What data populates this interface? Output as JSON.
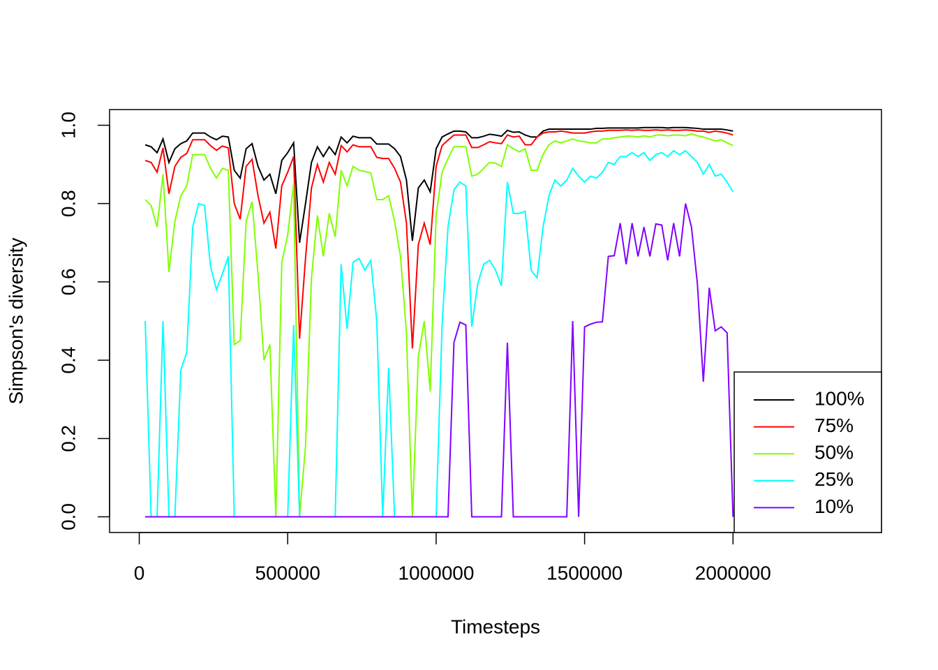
{
  "chart_data": {
    "type": "line",
    "x_label": "Timesteps",
    "y_label": "Simpson's diversity",
    "xlim": [
      -100000,
      2500000
    ],
    "ylim": [
      -0.04,
      1.04
    ],
    "xticks": [
      0,
      500000,
      1000000,
      1500000,
      2000000
    ],
    "yticks": [
      {
        "value": 0,
        "label": "0.0"
      },
      {
        "value": 0.2,
        "label": "0.2"
      },
      {
        "value": 0.4,
        "label": "0.4"
      },
      {
        "value": 0.6,
        "label": "0.6"
      },
      {
        "value": 0.8,
        "label": "0.8"
      },
      {
        "value": 1,
        "label": "1.0"
      }
    ],
    "legend_position": "bottom-right",
    "x": [
      20000,
      40000,
      60000,
      80000,
      100000,
      120000,
      140000,
      160000,
      180000,
      200000,
      220000,
      240000,
      260000,
      280000,
      300000,
      320000,
      340000,
      360000,
      380000,
      400000,
      420000,
      440000,
      460000,
      480000,
      500000,
      520000,
      540000,
      560000,
      580000,
      600000,
      620000,
      640000,
      660000,
      680000,
      700000,
      720000,
      740000,
      760000,
      780000,
      800000,
      820000,
      840000,
      860000,
      880000,
      900000,
      920000,
      940000,
      960000,
      980000,
      1000000,
      1020000,
      1040000,
      1060000,
      1080000,
      1100000,
      1120000,
      1140000,
      1160000,
      1180000,
      1200000,
      1220000,
      1240000,
      1260000,
      1280000,
      1300000,
      1320000,
      1340000,
      1360000,
      1380000,
      1400000,
      1420000,
      1440000,
      1460000,
      1480000,
      1500000,
      1520000,
      1540000,
      1560000,
      1580000,
      1600000,
      1620000,
      1640000,
      1660000,
      1680000,
      1700000,
      1720000,
      1740000,
      1760000,
      1780000,
      1800000,
      1820000,
      1840000,
      1860000,
      1880000,
      1900000,
      1920000,
      1940000,
      1960000,
      1980000,
      2000000
    ],
    "series": [
      {
        "name": "100%",
        "color": "#000000",
        "values": [
          0.95,
          0.945,
          0.93,
          0.965,
          0.905,
          0.94,
          0.953,
          0.96,
          0.98,
          0.98,
          0.98,
          0.97,
          0.963,
          0.972,
          0.97,
          0.885,
          0.865,
          0.94,
          0.953,
          0.895,
          0.86,
          0.875,
          0.825,
          0.91,
          0.93,
          0.955,
          0.7,
          0.8,
          0.905,
          0.945,
          0.92,
          0.945,
          0.925,
          0.97,
          0.955,
          0.972,
          0.968,
          0.968,
          0.968,
          0.952,
          0.952,
          0.952,
          0.94,
          0.92,
          0.86,
          0.705,
          0.84,
          0.86,
          0.83,
          0.94,
          0.97,
          0.978,
          0.985,
          0.985,
          0.983,
          0.968,
          0.968,
          0.972,
          0.977,
          0.975,
          0.972,
          0.987,
          0.982,
          0.983,
          0.975,
          0.97,
          0.97,
          0.985,
          0.99,
          0.99,
          0.99,
          0.99,
          0.99,
          0.99,
          0.99,
          0.99,
          0.992,
          0.992,
          0.993,
          0.993,
          0.993,
          0.993,
          0.993,
          0.993,
          0.994,
          0.994,
          0.994,
          0.994,
          0.993,
          0.994,
          0.994,
          0.994,
          0.993,
          0.992,
          0.99,
          0.99,
          0.99,
          0.99,
          0.988,
          0.985
        ]
      },
      {
        "name": "75%",
        "color": "#ff0000",
        "values": [
          0.91,
          0.905,
          0.88,
          0.942,
          0.825,
          0.895,
          0.918,
          0.928,
          0.963,
          0.963,
          0.963,
          0.948,
          0.936,
          0.947,
          0.942,
          0.8,
          0.76,
          0.895,
          0.913,
          0.82,
          0.75,
          0.778,
          0.685,
          0.845,
          0.88,
          0.92,
          0.455,
          0.66,
          0.84,
          0.9,
          0.855,
          0.905,
          0.875,
          0.948,
          0.932,
          0.95,
          0.945,
          0.945,
          0.945,
          0.918,
          0.915,
          0.915,
          0.89,
          0.855,
          0.75,
          0.43,
          0.695,
          0.75,
          0.695,
          0.895,
          0.948,
          0.962,
          0.975,
          0.975,
          0.975,
          0.943,
          0.943,
          0.95,
          0.958,
          0.955,
          0.953,
          0.975,
          0.97,
          0.972,
          0.95,
          0.95,
          0.97,
          0.98,
          0.983,
          0.983,
          0.985,
          0.983,
          0.98,
          0.98,
          0.98,
          0.983,
          0.985,
          0.985,
          0.987,
          0.987,
          0.987,
          0.988,
          0.987,
          0.988,
          0.987,
          0.987,
          0.988,
          0.987,
          0.988,
          0.987,
          0.987,
          0.988,
          0.987,
          0.985,
          0.985,
          0.982,
          0.985,
          0.983,
          0.98,
          0.975
        ]
      },
      {
        "name": "50%",
        "color": "#80ff00",
        "values": [
          0.81,
          0.795,
          0.74,
          0.875,
          0.625,
          0.755,
          0.82,
          0.845,
          0.925,
          0.925,
          0.925,
          0.89,
          0.865,
          0.89,
          0.885,
          0.44,
          0.45,
          0.755,
          0.805,
          0.62,
          0.4,
          0.44,
          0,
          0.65,
          0.72,
          0.85,
          0,
          0.18,
          0.61,
          0.77,
          0.665,
          0.775,
          0.715,
          0.885,
          0.845,
          0.895,
          0.885,
          0.882,
          0.878,
          0.81,
          0.81,
          0.82,
          0.755,
          0.665,
          0.47,
          0,
          0.41,
          0.5,
          0.32,
          0.77,
          0.88,
          0.915,
          0.945,
          0.945,
          0.945,
          0.87,
          0.875,
          0.89,
          0.905,
          0.903,
          0.895,
          0.95,
          0.94,
          0.932,
          0.94,
          0.885,
          0.885,
          0.925,
          0.95,
          0.96,
          0.955,
          0.96,
          0.965,
          0.96,
          0.958,
          0.955,
          0.955,
          0.965,
          0.965,
          0.968,
          0.97,
          0.972,
          0.972,
          0.97,
          0.973,
          0.97,
          0.975,
          0.975,
          0.973,
          0.975,
          0.975,
          0.973,
          0.978,
          0.973,
          0.97,
          0.965,
          0.96,
          0.963,
          0.955,
          0.948
        ]
      },
      {
        "name": "25%",
        "color": "#00ffff",
        "values": [
          0.5,
          0,
          0,
          0.5,
          0,
          0,
          0.375,
          0.42,
          0.74,
          0.8,
          0.795,
          0.64,
          0.58,
          0.62,
          0.665,
          0,
          0,
          0,
          0,
          0,
          0,
          0,
          0,
          0,
          0,
          0.49,
          0,
          0,
          0,
          0,
          0,
          0,
          0,
          0.645,
          0.48,
          0.65,
          0.66,
          0.63,
          0.655,
          0.5,
          0,
          0.38,
          0,
          0,
          0,
          0,
          0,
          0,
          0,
          0,
          0.49,
          0.74,
          0.835,
          0.855,
          0.845,
          0.485,
          0.595,
          0.645,
          0.655,
          0.63,
          0.59,
          0.855,
          0.775,
          0.775,
          0.78,
          0.63,
          0.61,
          0.74,
          0.82,
          0.86,
          0.845,
          0.86,
          0.89,
          0.87,
          0.855,
          0.87,
          0.865,
          0.88,
          0.905,
          0.9,
          0.92,
          0.92,
          0.93,
          0.92,
          0.93,
          0.91,
          0.925,
          0.93,
          0.92,
          0.935,
          0.925,
          0.935,
          0.92,
          0.905,
          0.875,
          0.9,
          0.87,
          0.875,
          0.855,
          0.83
        ]
      },
      {
        "name": "10%",
        "color": "#8000ff",
        "values": [
          0,
          0,
          0,
          0,
          0,
          0,
          0,
          0,
          0,
          0,
          0,
          0,
          0,
          0,
          0,
          0,
          0,
          0,
          0,
          0,
          0,
          0,
          0,
          0,
          0,
          0,
          0,
          0,
          0,
          0,
          0,
          0,
          0,
          0,
          0,
          0,
          0,
          0,
          0,
          0,
          0,
          0,
          0,
          0,
          0,
          0,
          0,
          0,
          0,
          0,
          0,
          0,
          0.445,
          0.497,
          0.49,
          0,
          0,
          0,
          0,
          0,
          0,
          0.445,
          0,
          0,
          0,
          0,
          0,
          0,
          0,
          0,
          0,
          0,
          0.5,
          0,
          0.485,
          0.492,
          0.497,
          0.498,
          0.665,
          0.667,
          0.75,
          0.645,
          0.75,
          0.665,
          0.74,
          0.665,
          0.748,
          0.745,
          0.655,
          0.75,
          0.665,
          0.8,
          0.74,
          0.595,
          0.345,
          0.585,
          0.475,
          0.485,
          0.47,
          0
        ]
      }
    ]
  }
}
